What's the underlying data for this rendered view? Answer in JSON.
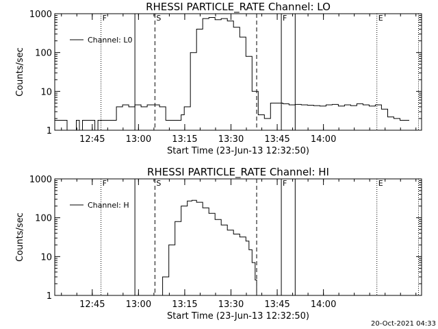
{
  "footer": {
    "timestamp": "20-Oct-2021 04:33"
  },
  "chart_data": [
    {
      "type": "line",
      "title": "RHESSI PARTICLE_RATE Channel: LO",
      "xlabel": "Start Time (23-Jun-13 12:32:50)",
      "ylabel": "Counts/sec",
      "yscale": "log",
      "ylim": [
        1,
        1000
      ],
      "xlim_minutes_from_start": [
        0,
        119
      ],
      "x_ticks": [
        "12:45",
        "13:00",
        "13:15",
        "13:30",
        "13:45",
        "14:00"
      ],
      "y_ticks": [
        "1",
        "10",
        "100",
        "1000"
      ],
      "legend": {
        "label": "Channel: L0",
        "position": "top-left"
      },
      "series": [
        {
          "name": "Channel: L0",
          "x": [
            0,
            3,
            4,
            7,
            8,
            9,
            10,
            12,
            13,
            14,
            15,
            17,
            19,
            20,
            22,
            24,
            26,
            28,
            30,
            32,
            34,
            36,
            38,
            40,
            41,
            42,
            44,
            46,
            48,
            50,
            52,
            54,
            56,
            58,
            60,
            62,
            64,
            66,
            68,
            70,
            72,
            74,
            76,
            78,
            80,
            82,
            84,
            86,
            88,
            90,
            92,
            94,
            96,
            98,
            100,
            102,
            104,
            106,
            108,
            110,
            112,
            114,
            115
          ],
          "y": [
            1.8,
            1.8,
            1.0,
            1.8,
            1.0,
            1.8,
            1.8,
            1.8,
            1.0,
            1.8,
            1.8,
            1.8,
            1.8,
            4.0,
            4.5,
            4.0,
            4.5,
            4.0,
            4.5,
            4.5,
            4.0,
            1.8,
            1.8,
            1.8,
            2.5,
            4.0,
            100,
            400,
            750,
            800,
            700,
            750,
            650,
            450,
            250,
            80,
            10,
            2.5,
            2.0,
            5.0,
            5.0,
            4.8,
            4.5,
            4.6,
            4.5,
            4.4,
            4.3,
            4.2,
            4.5,
            4.6,
            4.2,
            4.5,
            4.3,
            4.8,
            4.5,
            4.2,
            4.5,
            3.5,
            2.2,
            2.0,
            1.8,
            1.8,
            1.8
          ]
        }
      ],
      "annotations": [
        {
          "x": 15,
          "style": "dotted",
          "label": "F"
        },
        {
          "x": 26,
          "style": "solid",
          "label": ""
        },
        {
          "x": 32.5,
          "style": "dashed",
          "label": "S"
        },
        {
          "x": 65.5,
          "style": "dashed",
          "label": ""
        },
        {
          "x": 73.5,
          "style": "solid",
          "label": "F"
        },
        {
          "x": 78,
          "style": "solid",
          "label": ""
        },
        {
          "x": 104.5,
          "style": "dotted",
          "label": "E"
        },
        {
          "x": 118,
          "style": "dotted",
          "label": ""
        }
      ]
    },
    {
      "type": "line",
      "title": "RHESSI PARTICLE_RATE Channel: HI",
      "xlabel": "Start Time (23-Jun-13 12:32:50)",
      "ylabel": "Counts/sec",
      "yscale": "log",
      "ylim": [
        1,
        1000
      ],
      "xlim_minutes_from_start": [
        0,
        119
      ],
      "x_ticks": [
        "12:45",
        "13:00",
        "13:15",
        "13:30",
        "13:45",
        "14:00"
      ],
      "y_ticks": [
        "1",
        "10",
        "100",
        "1000"
      ],
      "legend": {
        "label": "Channel: H",
        "position": "top-left"
      },
      "series": [
        {
          "name": "Channel: H",
          "x": [
            33.8,
            35,
            37,
            39,
            41,
            43,
            44.5,
            46,
            48,
            50,
            52,
            54,
            56,
            58,
            60,
            62,
            63,
            64,
            65,
            65.5
          ],
          "y": [
            1.0,
            3.0,
            20,
            80,
            200,
            270,
            280,
            250,
            180,
            130,
            90,
            65,
            48,
            38,
            32,
            25,
            15,
            7,
            2.5,
            1.0
          ]
        }
      ],
      "annotations": [
        {
          "x": 15,
          "style": "dotted",
          "label": "F"
        },
        {
          "x": 26,
          "style": "solid",
          "label": ""
        },
        {
          "x": 32.5,
          "style": "dashed",
          "label": "S"
        },
        {
          "x": 65.5,
          "style": "dashed",
          "label": ""
        },
        {
          "x": 73.5,
          "style": "solid",
          "label": "F"
        },
        {
          "x": 78,
          "style": "solid",
          "label": ""
        },
        {
          "x": 104.5,
          "style": "dotted",
          "label": "E"
        },
        {
          "x": 118,
          "style": "dotted",
          "label": ""
        }
      ]
    }
  ]
}
